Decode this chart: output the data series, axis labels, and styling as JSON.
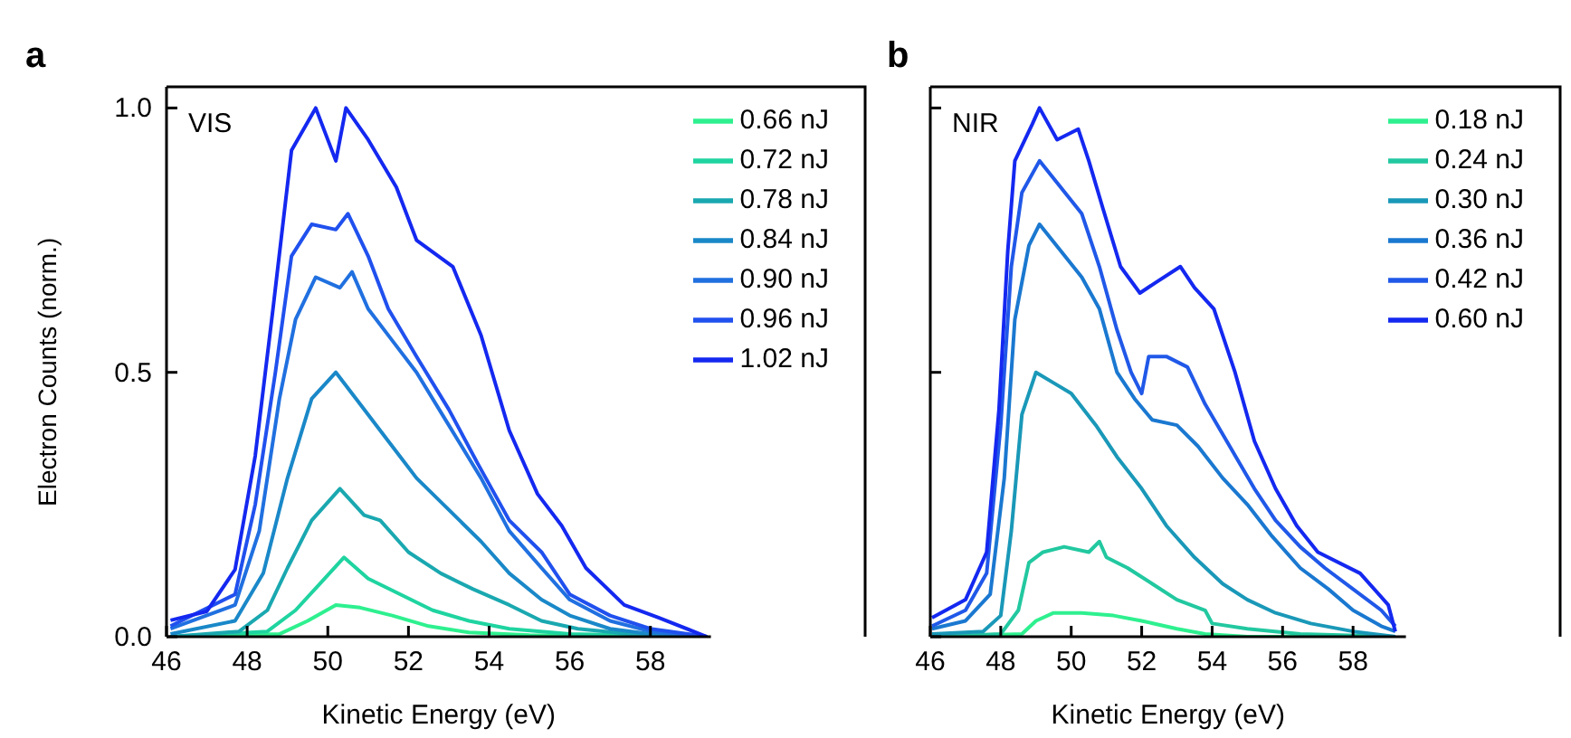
{
  "chart_data": [
    {
      "type": "line",
      "title": "a",
      "annotations": [
        "VIS"
      ],
      "xlabel": "Kinetic Energy (eV)",
      "ylabel": "Electron Counts (norm.)",
      "xlim": [
        46,
        59.5
      ],
      "xticks": [
        46,
        48,
        50,
        52,
        54,
        56,
        58
      ],
      "ylim": [
        0,
        1.04
      ],
      "yticks": [
        {
          "value": 0,
          "label": "0.0"
        },
        {
          "value": 0.5,
          "label": "0.5"
        },
        {
          "value": 1,
          "label": "1.0"
        }
      ],
      "grid": false,
      "legend": "top right",
      "marker": "none",
      "line_style": "solid",
      "series": [
        {
          "name": "0.66 nJ",
          "color": "#2ef08f",
          "x": [
            46.1,
            48.8,
            49.5,
            50.2,
            50.8,
            51.6,
            52.5,
            53.5,
            55,
            59.4
          ],
          "values": [
            0,
            0.005,
            0.03,
            0.06,
            0.055,
            0.04,
            0.02,
            0.008,
            0.003,
            0
          ]
        },
        {
          "name": "0.72 nJ",
          "color": "#1fd4a0",
          "x": [
            46.1,
            48.5,
            49.2,
            49.8,
            50.4,
            51,
            51.8,
            52.6,
            53.5,
            54.5,
            56,
            59.4
          ],
          "values": [
            0,
            0.01,
            0.05,
            0.1,
            0.15,
            0.11,
            0.08,
            0.05,
            0.03,
            0.015,
            0.005,
            0
          ]
        },
        {
          "name": "0.78 nJ",
          "color": "#1aa8b0",
          "x": [
            46.1,
            47.8,
            48.5,
            49,
            49.6,
            50.3,
            50.9,
            51.3,
            52,
            52.8,
            53.6,
            54.5,
            55.3,
            56.2,
            57.5,
            59.4
          ],
          "values": [
            0,
            0.01,
            0.05,
            0.13,
            0.22,
            0.28,
            0.23,
            0.22,
            0.16,
            0.12,
            0.09,
            0.06,
            0.03,
            0.015,
            0.005,
            0
          ]
        },
        {
          "name": "0.84 nJ",
          "color": "#1a88c8",
          "x": [
            46.1,
            47.7,
            48.4,
            49,
            49.6,
            50.2,
            50.8,
            51.5,
            52.2,
            53,
            53.8,
            54.5,
            55.3,
            56,
            57,
            58,
            59.4
          ],
          "values": [
            0.005,
            0.03,
            0.12,
            0.3,
            0.45,
            0.5,
            0.44,
            0.37,
            0.3,
            0.24,
            0.18,
            0.12,
            0.07,
            0.04,
            0.015,
            0.005,
            0
          ]
        },
        {
          "name": "0.90 nJ",
          "color": "#2070e0",
          "x": [
            46.1,
            47.7,
            48.3,
            48.8,
            49.2,
            49.7,
            50.3,
            50.6,
            51,
            51.6,
            52.2,
            53,
            53.8,
            54.5,
            55.3,
            56,
            57,
            58,
            59.4
          ],
          "values": [
            0.015,
            0.06,
            0.2,
            0.45,
            0.6,
            0.68,
            0.66,
            0.69,
            0.62,
            0.56,
            0.5,
            0.4,
            0.3,
            0.2,
            0.13,
            0.07,
            0.03,
            0.01,
            0
          ]
        },
        {
          "name": "0.96 nJ",
          "color": "#2050ee",
          "x": [
            46.1,
            47.7,
            48.2,
            48.7,
            49.1,
            49.6,
            50.2,
            50.5,
            51,
            51.5,
            52.2,
            53,
            53.7,
            54.5,
            55.3,
            56,
            57,
            58,
            59.4
          ],
          "values": [
            0.02,
            0.08,
            0.25,
            0.5,
            0.72,
            0.78,
            0.77,
            0.8,
            0.72,
            0.62,
            0.53,
            0.43,
            0.33,
            0.22,
            0.16,
            0.08,
            0.04,
            0.015,
            0
          ]
        },
        {
          "name": "1.02 nJ",
          "color": "#1428f0",
          "x": [
            46.1,
            47,
            47.7,
            48.2,
            48.65,
            49.1,
            49.7,
            50.2,
            50.45,
            51,
            51.7,
            52.2,
            53.1,
            53.8,
            54.5,
            55.2,
            55.8,
            56.4,
            57.35,
            58.2,
            59.4
          ],
          "values": [
            0.031,
            0.048,
            0.127,
            0.342,
            0.626,
            0.92,
            1,
            0.9,
            1,
            0.94,
            0.85,
            0.75,
            0.7,
            0.57,
            0.39,
            0.27,
            0.21,
            0.13,
            0.06,
            0.036,
            0
          ]
        }
      ]
    },
    {
      "type": "line",
      "title": "b",
      "annotations": [
        "NIR"
      ],
      "xlabel": "Kinetic Energy (eV)",
      "xlim": [
        46,
        59.5
      ],
      "xticks": [
        46,
        48,
        50,
        52,
        54,
        56,
        58
      ],
      "ylim": [
        0,
        1.04
      ],
      "yticks": [
        0,
        0.5,
        1
      ],
      "tick_labels": "x",
      "grid": false,
      "legend": "top right",
      "marker": "none",
      "line_style": "solid",
      "series": [
        {
          "name": "0.18 nJ",
          "color": "#2ef08f",
          "x": [
            46.05,
            48.6,
            49,
            49.5,
            50.3,
            51.2,
            52,
            53,
            53.8,
            55,
            59.2
          ],
          "values": [
            0,
            0.005,
            0.03,
            0.045,
            0.045,
            0.04,
            0.03,
            0.015,
            0.005,
            0,
            0
          ]
        },
        {
          "name": "0.24 nJ",
          "color": "#22c8a0",
          "x": [
            46.05,
            48,
            48.5,
            48.8,
            49.2,
            49.8,
            50.5,
            50.8,
            51,
            51.6,
            52.3,
            53,
            53.8,
            54,
            55,
            56.5,
            59.2
          ],
          "values": [
            0,
            0.005,
            0.05,
            0.14,
            0.16,
            0.17,
            0.16,
            0.18,
            0.15,
            0.13,
            0.1,
            0.07,
            0.05,
            0.025,
            0.015,
            0.005,
            0
          ]
        },
        {
          "name": "0.30 nJ",
          "color": "#1a98b8",
          "x": [
            46.05,
            47.5,
            48,
            48.3,
            48.6,
            49,
            49.5,
            50,
            50.7,
            51.3,
            52,
            52.7,
            53.5,
            54.3,
            55,
            55.8,
            56.8,
            58,
            59.2
          ],
          "values": [
            0.005,
            0.01,
            0.04,
            0.2,
            0.42,
            0.5,
            0.48,
            0.46,
            0.4,
            0.34,
            0.28,
            0.21,
            0.15,
            0.1,
            0.07,
            0.045,
            0.025,
            0.01,
            0
          ]
        },
        {
          "name": "0.36 nJ",
          "color": "#1a78d0",
          "x": [
            46.05,
            47,
            47.7,
            48.1,
            48.4,
            48.8,
            49.1,
            49.7,
            50.3,
            50.8,
            51.3,
            51.8,
            52.3,
            53,
            53.6,
            54.3,
            55,
            55.7,
            56.5,
            57.3,
            58,
            58.8,
            59.2
          ],
          "values": [
            0.015,
            0.03,
            0.08,
            0.3,
            0.6,
            0.74,
            0.78,
            0.73,
            0.68,
            0.62,
            0.5,
            0.45,
            0.41,
            0.4,
            0.36,
            0.3,
            0.25,
            0.19,
            0.13,
            0.09,
            0.05,
            0.02,
            0.01
          ]
        },
        {
          "name": "0.42 nJ",
          "color": "#2058e8",
          "x": [
            46.05,
            47,
            47.6,
            48,
            48.3,
            48.6,
            49.1,
            49.7,
            50.3,
            50.8,
            51.3,
            51.7,
            52,
            52.2,
            52.7,
            53.3,
            53.8,
            54.5,
            55.2,
            55.8,
            56.5,
            57.2,
            58,
            58.8,
            59.2
          ],
          "values": [
            0.02,
            0.05,
            0.12,
            0.4,
            0.7,
            0.84,
            0.9,
            0.85,
            0.8,
            0.7,
            0.58,
            0.5,
            0.46,
            0.53,
            0.53,
            0.51,
            0.44,
            0.36,
            0.28,
            0.22,
            0.17,
            0.13,
            0.09,
            0.05,
            0.02
          ]
        },
        {
          "name": "0.60 nJ",
          "color": "#1428f0",
          "x": [
            46.05,
            47,
            47.6,
            47.95,
            48.2,
            48.4,
            48.9,
            49.1,
            49.6,
            50.2,
            50.5,
            50.9,
            51.4,
            51.95,
            52.4,
            53.1,
            53.5,
            54.05,
            54.65,
            55.2,
            55.8,
            56.4,
            57,
            58.2,
            59,
            59.2
          ],
          "values": [
            0.036,
            0.07,
            0.16,
            0.43,
            0.73,
            0.9,
            0.97,
            1,
            0.94,
            0.96,
            0.9,
            0.81,
            0.7,
            0.65,
            0.67,
            0.7,
            0.66,
            0.62,
            0.5,
            0.37,
            0.28,
            0.21,
            0.16,
            0.12,
            0.06,
            0.01
          ]
        }
      ]
    }
  ]
}
